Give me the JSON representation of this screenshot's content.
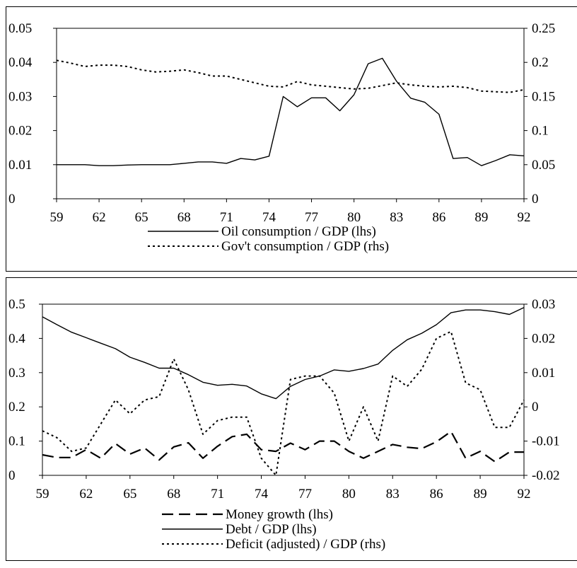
{
  "chart_data": [
    {
      "type": "line",
      "title": "",
      "x": [
        59,
        60,
        61,
        62,
        63,
        64,
        65,
        66,
        67,
        68,
        69,
        70,
        71,
        72,
        73,
        74,
        75,
        76,
        77,
        78,
        79,
        80,
        81,
        82,
        83,
        84,
        85,
        86,
        87,
        88,
        89,
        90,
        91,
        92
      ],
      "xticks": [
        "59",
        "62",
        "65",
        "68",
        "71",
        "74",
        "77",
        "80",
        "83",
        "86",
        "89",
        "92"
      ],
      "left_axis": {
        "ylim": [
          0,
          0.05
        ],
        "ticks": [
          "0",
          "0.01",
          "0.02",
          "0.03",
          "0.04",
          "0.05"
        ]
      },
      "right_axis": {
        "ylim": [
          0,
          0.25
        ],
        "ticks": [
          "0",
          "0.05",
          "0.1",
          "0.15",
          "0.2",
          "0.25"
        ]
      },
      "grid": false,
      "legend_position": "bottom-center",
      "series": [
        {
          "name": "Oil consumption / GDP (lhs)",
          "axis": "left",
          "style": "solid",
          "color": "#000000",
          "values": [
            0.01,
            0.01,
            0.01,
            0.0097,
            0.0097,
            0.0099,
            0.01,
            0.01,
            0.01,
            0.0104,
            0.0108,
            0.0108,
            0.0104,
            0.0118,
            0.0114,
            0.0125,
            0.03,
            0.027,
            0.0296,
            0.0296,
            0.0258,
            0.0305,
            0.0396,
            0.0412,
            0.0345,
            0.0295,
            0.0283,
            0.0248,
            0.0118,
            0.0121,
            0.0097,
            0.0112,
            0.0129,
            0.0126
          ]
        },
        {
          "name": "Gov't consumption / GDP (rhs)",
          "axis": "right",
          "style": "dotted",
          "color": "#000000",
          "values": [
            0.203,
            0.199,
            0.194,
            0.196,
            0.196,
            0.194,
            0.189,
            0.186,
            0.187,
            0.189,
            0.185,
            0.18,
            0.18,
            0.175,
            0.17,
            0.165,
            0.164,
            0.172,
            0.167,
            0.165,
            0.163,
            0.161,
            0.162,
            0.166,
            0.17,
            0.167,
            0.165,
            0.164,
            0.165,
            0.163,
            0.158,
            0.157,
            0.156,
            0.16
          ]
        }
      ]
    },
    {
      "type": "line",
      "title": "",
      "x": [
        59,
        60,
        61,
        62,
        63,
        64,
        65,
        66,
        67,
        68,
        69,
        70,
        71,
        72,
        73,
        74,
        75,
        76,
        77,
        78,
        79,
        80,
        81,
        82,
        83,
        84,
        85,
        86,
        87,
        88,
        89,
        90,
        91,
        92
      ],
      "xticks": [
        "59",
        "62",
        "65",
        "68",
        "71",
        "74",
        "77",
        "80",
        "83",
        "86",
        "89",
        "92"
      ],
      "left_axis": {
        "ylim": [
          0,
          0.5
        ],
        "ticks": [
          "0",
          "0.1",
          "0.2",
          "0.3",
          "0.4",
          "0.5"
        ]
      },
      "right_axis": {
        "ylim": [
          -0.02,
          0.03
        ],
        "ticks": [
          "-0.02",
          "-0.01",
          "0",
          "0.01",
          "0.02",
          "0.03"
        ]
      },
      "grid": false,
      "legend_position": "bottom-center",
      "series": [
        {
          "name": "Money growth (lhs)",
          "axis": "left",
          "style": "dashed",
          "color": "#000000",
          "values": [
            0.06,
            0.052,
            0.052,
            0.075,
            0.05,
            0.093,
            0.062,
            0.08,
            0.045,
            0.083,
            0.095,
            0.05,
            0.085,
            0.113,
            0.12,
            0.075,
            0.07,
            0.094,
            0.075,
            0.1,
            0.1,
            0.07,
            0.05,
            0.07,
            0.09,
            0.082,
            0.078,
            0.098,
            0.128,
            0.05,
            0.07,
            0.04,
            0.068,
            0.068
          ]
        },
        {
          "name": "Debt / GDP (lhs)",
          "axis": "left",
          "style": "solid",
          "color": "#000000",
          "values": [
            0.463,
            0.44,
            0.418,
            0.402,
            0.386,
            0.37,
            0.345,
            0.33,
            0.313,
            0.313,
            0.294,
            0.272,
            0.263,
            0.266,
            0.261,
            0.238,
            0.224,
            0.26,
            0.28,
            0.29,
            0.308,
            0.304,
            0.312,
            0.325,
            0.365,
            0.396,
            0.415,
            0.44,
            0.475,
            0.483,
            0.483,
            0.478,
            0.47,
            0.49
          ]
        },
        {
          "name": "Deficit (adjusted) / GDP (rhs)",
          "axis": "right",
          "style": "dotted",
          "color": "#000000",
          "values": [
            -0.007,
            -0.009,
            -0.013,
            -0.012,
            -0.005,
            0.002,
            -0.002,
            0.002,
            0.003,
            0.014,
            0.005,
            -0.008,
            -0.004,
            -0.003,
            -0.003,
            -0.015,
            -0.02,
            0.008,
            0.009,
            0.009,
            0.004,
            -0.01,
            0.0,
            -0.01,
            0.009,
            0.006,
            0.011,
            0.02,
            0.022,
            0.007,
            0.005,
            -0.006,
            -0.006,
            0.002
          ]
        }
      ]
    }
  ]
}
